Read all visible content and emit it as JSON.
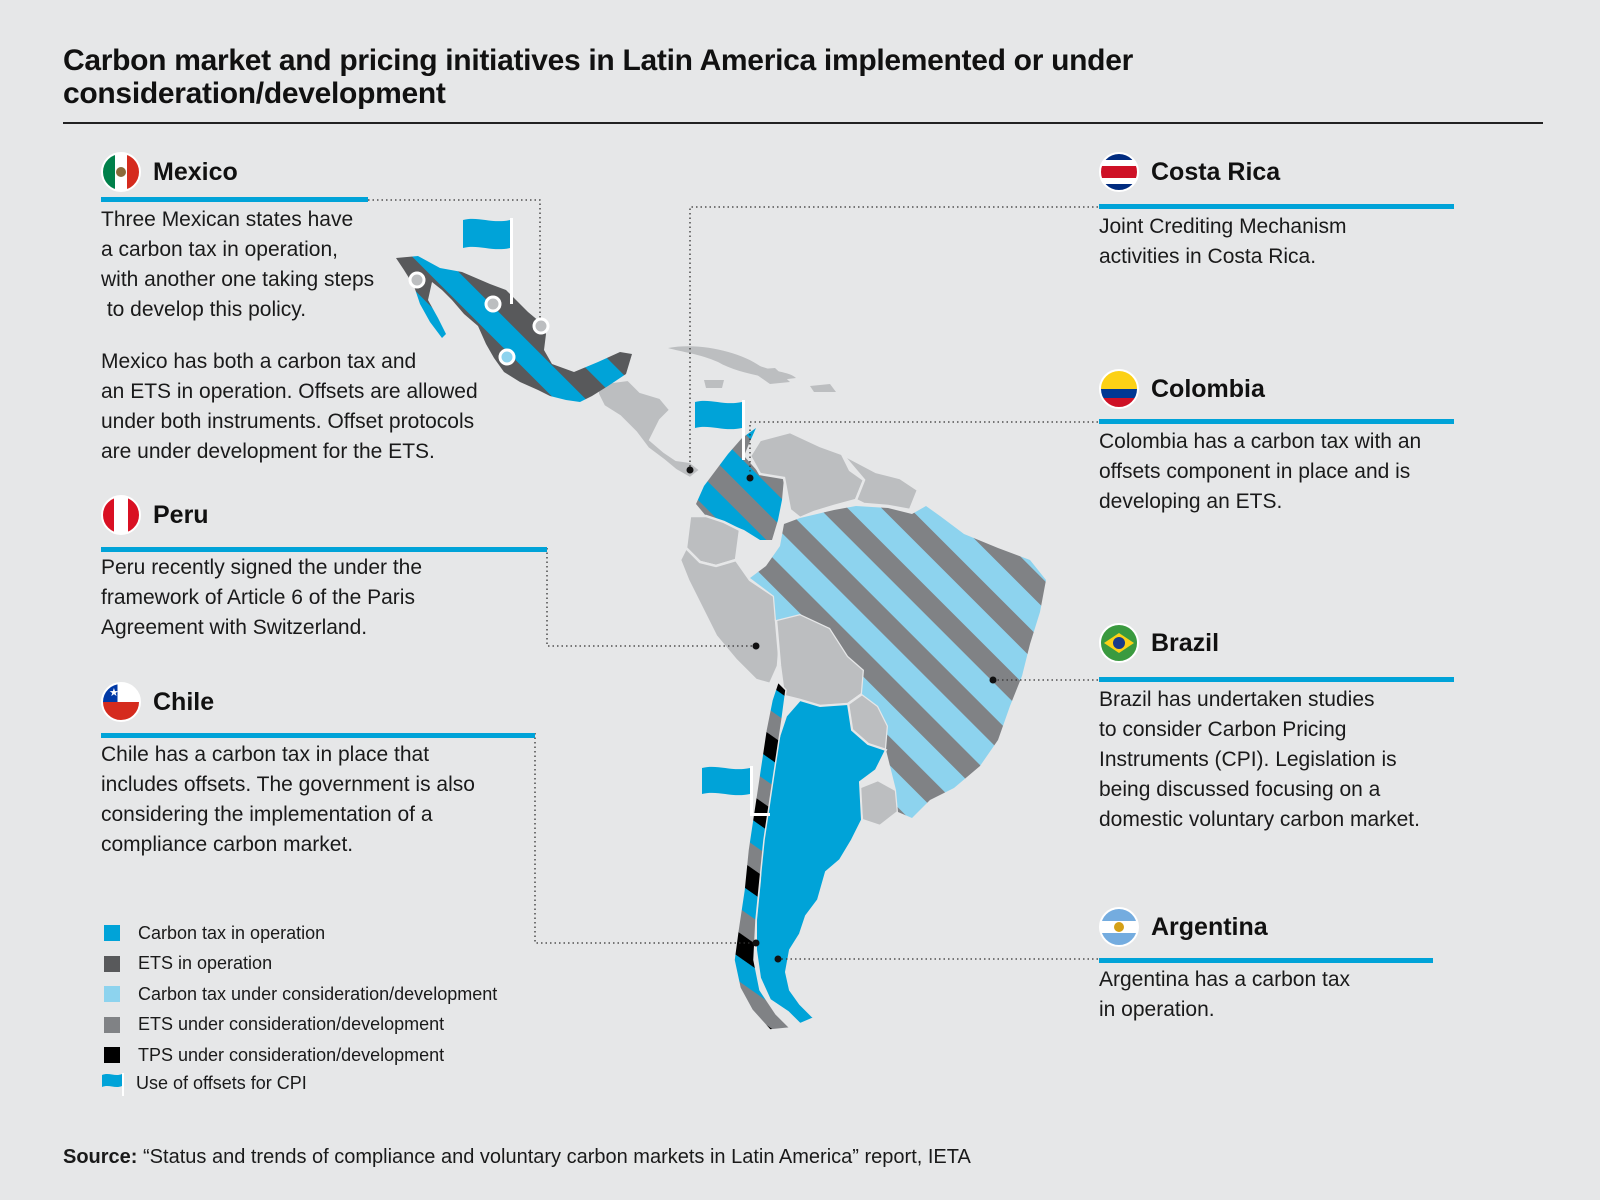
{
  "title": "Carbon market and pricing initiatives in Latin America implemented or under consideration/development",
  "countries": {
    "mexico": {
      "name": "Mexico",
      "paragraphs": [
        "Three Mexican states have a carbon tax in operation, with another one taking steps to develop this policy.",
        "Mexico has both a carbon tax and an ETS in operation. Offsets are allowed under both instruments. Offset protocols are under development for the ETS."
      ],
      "lines": [
        "Three Mexican states have",
        "a carbon tax in operation,",
        "with another one taking steps",
        " to develop this policy."
      ],
      "lines2": [
        "Mexico has both a carbon tax and",
        "an ETS in operation. Offsets are allowed",
        "under both instruments. Offset protocols",
        "are under development for the ETS."
      ]
    },
    "peru": {
      "name": "Peru",
      "lines": [
        "Peru recently signed the under the",
        "framework of Article 6 of the Paris",
        "Agreement with Switzerland."
      ]
    },
    "chile": {
      "name": "Chile",
      "lines": [
        "Chile has a carbon tax in place that",
        "includes offsets. The government is also",
        "considering the implementation of a",
        "compliance carbon market."
      ]
    },
    "costa_rica": {
      "name": "Costa Rica",
      "lines": [
        "Joint Crediting Mechanism",
        "activities in Costa Rica."
      ]
    },
    "colombia": {
      "name": "Colombia",
      "lines": [
        "Colombia has a carbon tax with an",
        "offsets component in place and is",
        "developing an ETS."
      ]
    },
    "brazil": {
      "name": "Brazil",
      "lines": [
        "Brazil has undertaken studies",
        "to consider Carbon Pricing",
        "Instruments (CPI). Legislation is",
        "being discussed focusing on a",
        "domestic voluntary carbon market."
      ]
    },
    "argentina": {
      "name": "Argentina",
      "lines": [
        "Argentina has a carbon tax",
        "in operation."
      ]
    }
  },
  "legend": [
    {
      "label": "Carbon tax in operation",
      "color": "#00a3d8",
      "icon": "square"
    },
    {
      "label": "ETS in operation",
      "color": "#58595b",
      "icon": "square"
    },
    {
      "label": "Carbon tax under consideration/development",
      "color": "#8dd3ee",
      "icon": "square"
    },
    {
      "label": "ETS under consideration/development",
      "color": "#808285",
      "icon": "square"
    },
    {
      "label": "TPS under consideration/development",
      "color": "#000000",
      "icon": "square"
    },
    {
      "label": "Use of offsets for CPI",
      "color": "#00a3d8",
      "icon": "flag-icon"
    }
  ],
  "source": {
    "label": "Source:",
    "text": " “Status and trends of compliance and voluntary carbon markets in Latin America” report, IETA"
  },
  "colors": {
    "background": "#e6e7e8",
    "accent_blue": "#00a3d8",
    "light_blue": "#8dd3ee",
    "ets_dark": "#58595b",
    "ets_dev": "#808285",
    "land_grey": "#bcbec0"
  }
}
